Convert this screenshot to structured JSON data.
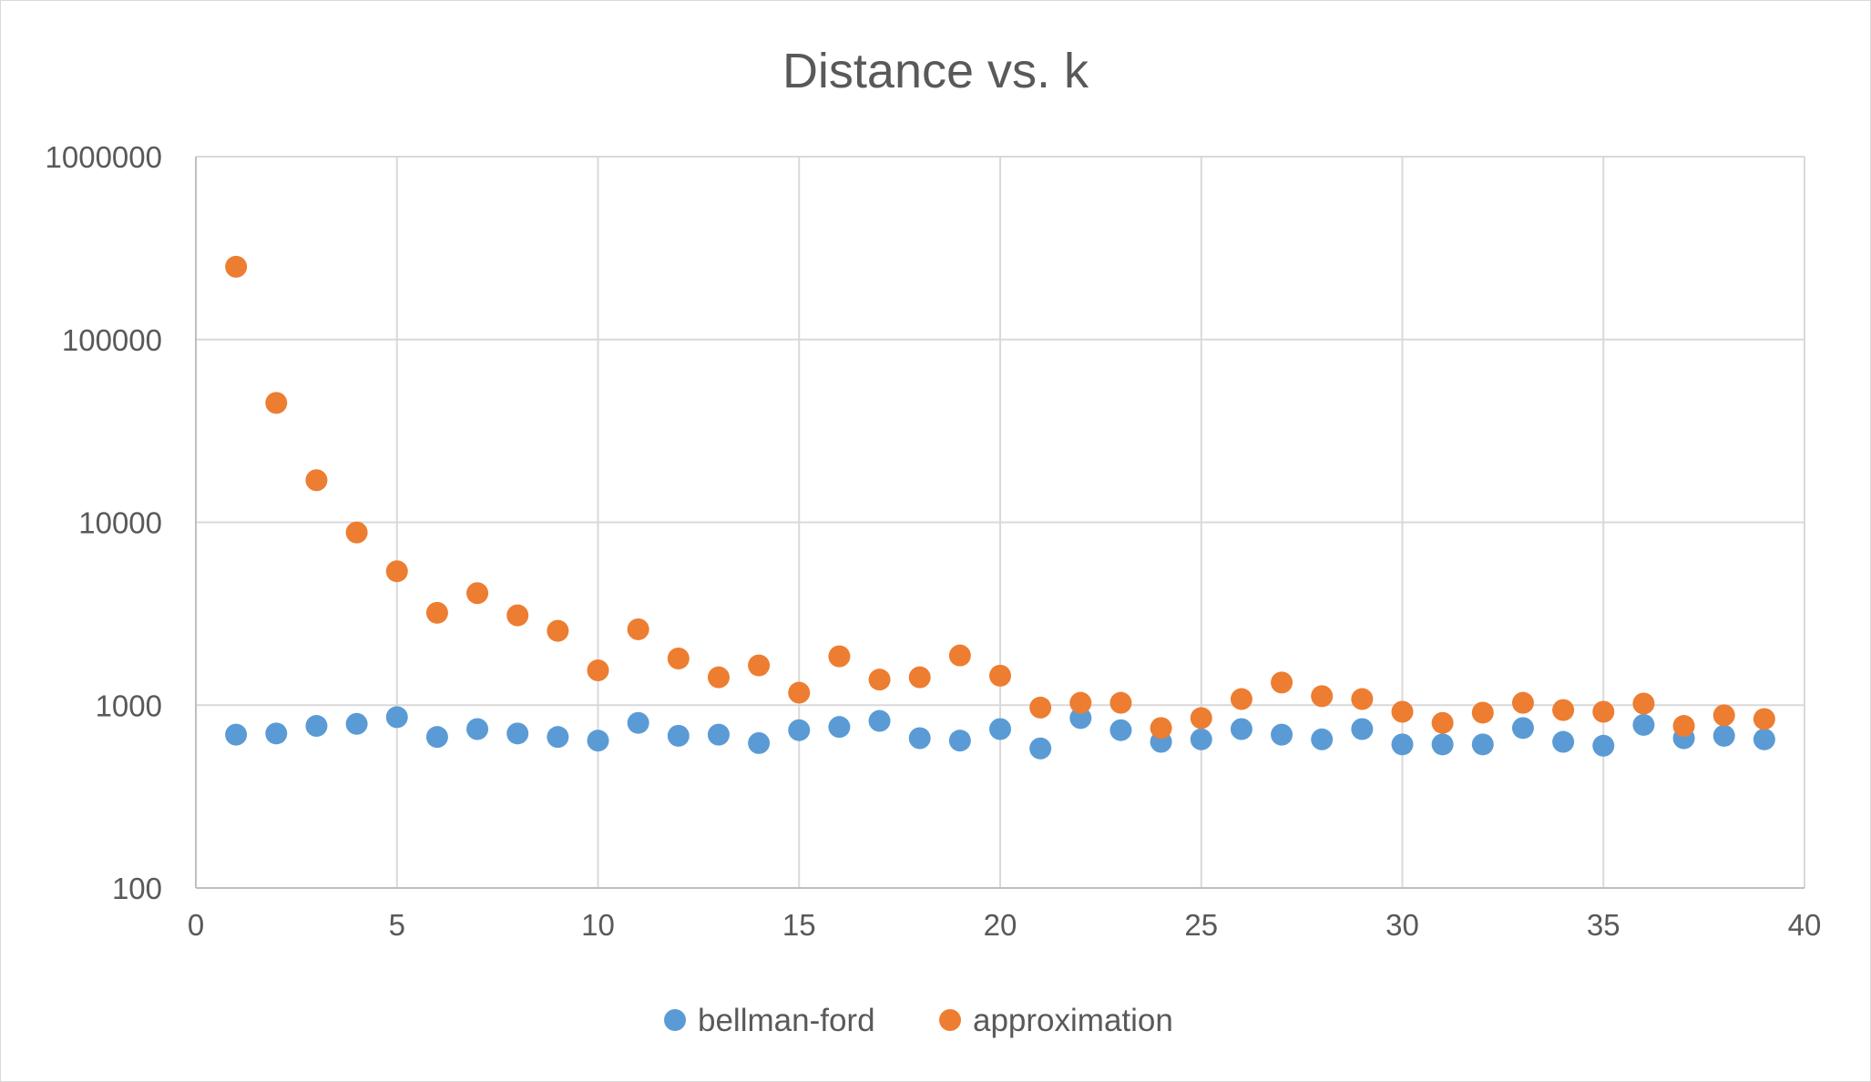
{
  "chart_data": {
    "type": "scatter",
    "title": "Distance vs. k",
    "xlabel": "",
    "ylabel": "",
    "xlim": [
      0,
      40
    ],
    "ylim": [
      100,
      1000000
    ],
    "y_scale": "log",
    "grid": true,
    "legend_position": "bottom",
    "x_ticks": [
      "0",
      "5",
      "10",
      "15",
      "20",
      "25",
      "30",
      "35",
      "40"
    ],
    "y_ticks": [
      "100",
      "1000",
      "10000",
      "100000",
      "1000000"
    ],
    "x": [
      1,
      2,
      3,
      4,
      5,
      6,
      7,
      8,
      9,
      10,
      11,
      12,
      13,
      14,
      15,
      16,
      17,
      18,
      19,
      20,
      21,
      22,
      23,
      24,
      25,
      26,
      27,
      28,
      29,
      30,
      31,
      32,
      33,
      34,
      35,
      36,
      37,
      38,
      39
    ],
    "series": [
      {
        "name": "bellman-ford",
        "color": "#5b9bd5",
        "values": [
          690,
          700,
          770,
          790,
          860,
          670,
          740,
          700,
          670,
          640,
          800,
          680,
          690,
          620,
          730,
          760,
          820,
          660,
          640,
          740,
          580,
          850,
          730,
          630,
          650,
          740,
          690,
          650,
          740,
          610,
          610,
          610,
          750,
          630,
          600,
          780,
          660,
          680,
          650
        ]
      },
      {
        "name": "approximation",
        "color": "#ed7d31",
        "values": [
          250000,
          45000,
          17000,
          8800,
          5400,
          3200,
          4100,
          3100,
          2550,
          1550,
          2600,
          1800,
          1420,
          1650,
          1170,
          1850,
          1380,
          1420,
          1870,
          1450,
          970,
          1030,
          1030,
          750,
          850,
          1080,
          1330,
          1120,
          1080,
          920,
          800,
          910,
          1030,
          940,
          920,
          1020,
          770,
          880,
          840
        ]
      }
    ]
  }
}
